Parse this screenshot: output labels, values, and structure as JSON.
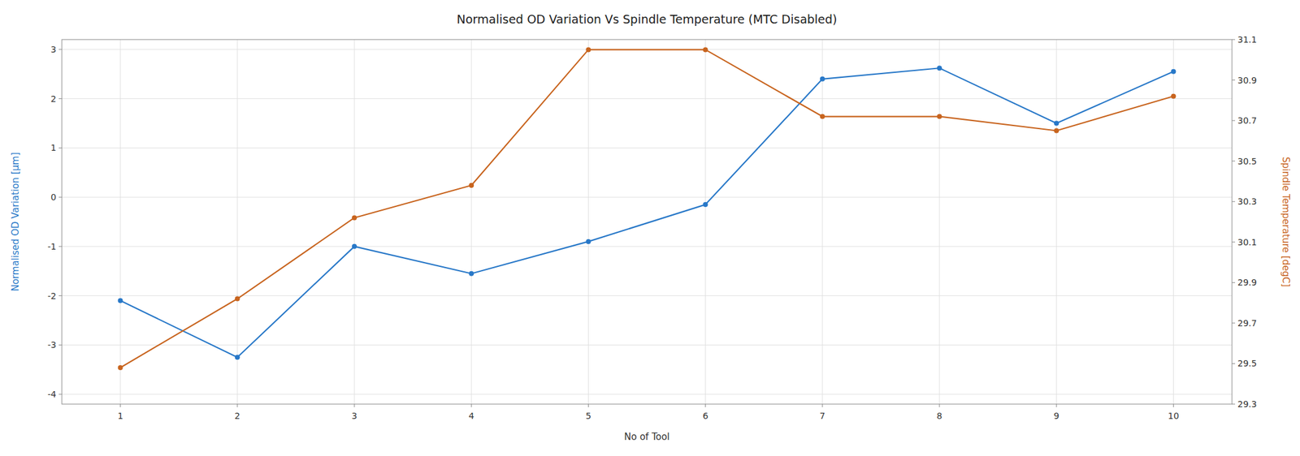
{
  "chart_data": {
    "type": "line",
    "title": "Normalised OD Variation Vs Spindle Temperature (MTC Disabled)",
    "xlabel": "No of Tool",
    "ylabel": "Normalised OD Variation [µm]",
    "y2label": "Spindle Temperature [degC]",
    "x": [
      1,
      2,
      3,
      4,
      5,
      6,
      7,
      8,
      9,
      10
    ],
    "series": [
      {
        "color": "#2878c8",
        "marker": "circle",
        "values": [
          -2.1,
          -3.25,
          -1.0,
          -1.55,
          -0.9,
          -0.15,
          2.4,
          2.62,
          1.5,
          2.55
        ]
      },
      {
        "color": "#c8641e",
        "marker": "circle",
        "axis": "y2",
        "values": [
          29.48,
          29.82,
          30.22,
          30.38,
          31.05,
          31.05,
          30.72,
          30.72,
          30.65,
          30.82
        ]
      }
    ],
    "xlim": [
      0.5,
      10.5
    ],
    "xticks": [
      1,
      2,
      3,
      4,
      5,
      6,
      7,
      8,
      9,
      10
    ],
    "ylim": [
      -4.2,
      3.2
    ],
    "yticks": [
      -4,
      -3,
      -2,
      -1,
      0,
      1,
      2,
      3
    ],
    "y2lim": [
      29.3,
      31.1
    ],
    "y2ticks": [
      29.3,
      29.5,
      29.7,
      29.9,
      30.1,
      30.3,
      30.5,
      30.7,
      30.9,
      31.1
    ],
    "grid": true
  }
}
